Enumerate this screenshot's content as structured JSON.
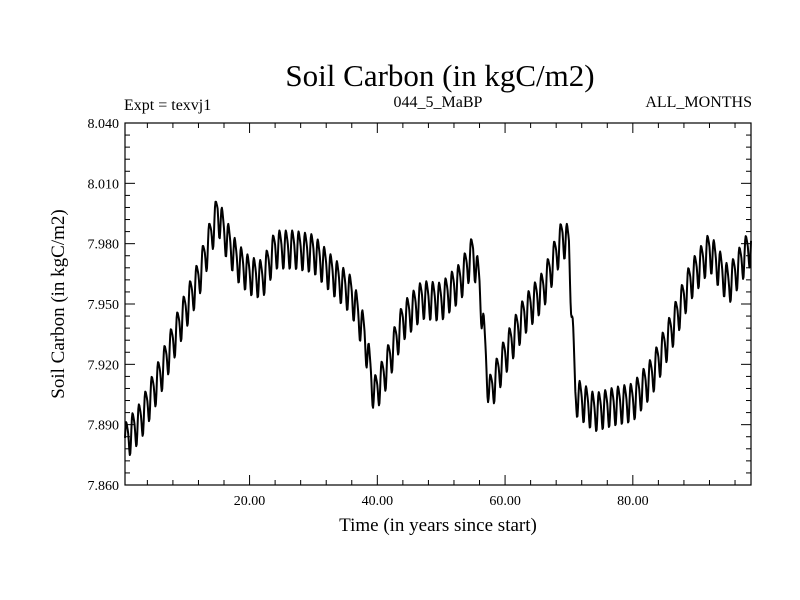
{
  "chart_data": {
    "type": "line",
    "title": "Soil Carbon (in kgC/m2)",
    "subtitle_left": "Expt = texvj1",
    "subtitle_center": "044_5_MaBP",
    "subtitle_right": "ALL_MONTHS",
    "xlabel": "Time (in years since start)",
    "ylabel": "Soil Carbon (in kgC/m2)",
    "xlim": [
      0.5,
      98.5
    ],
    "ylim": [
      7.86,
      8.04
    ],
    "x_ticks": [
      20,
      40,
      60,
      80
    ],
    "x_tick_labels": [
      "20.00",
      "40.00",
      "60.00",
      "80.00"
    ],
    "y_ticks": [
      7.86,
      7.89,
      7.92,
      7.95,
      7.98,
      8.01,
      8.04
    ],
    "y_tick_labels": [
      "7.860",
      "7.890",
      "7.920",
      "7.950",
      "7.980",
      "8.010",
      "8.040"
    ],
    "series": [
      {
        "name": "Soil Carbon",
        "description": "monthly values; seasonal amplitude approx 0.018 kgC/m2 around this annual-mean trend",
        "seasonal_amplitude": 0.018,
        "trend_x": [
          0.5,
          3,
          6,
          9,
          12,
          15,
          16,
          18,
          20,
          22,
          24,
          27,
          30,
          33,
          36,
          38,
          39.5,
          41,
          44,
          47,
          50,
          53,
          55,
          56,
          57.5,
          60,
          63,
          66,
          69,
          70,
          71,
          74,
          77,
          80,
          83,
          86,
          89,
          92,
          95,
          98.5
        ],
        "trend_y": [
          7.882,
          7.893,
          7.915,
          7.94,
          7.963,
          7.996,
          7.986,
          7.972,
          7.965,
          7.963,
          7.978,
          7.978,
          7.976,
          7.965,
          7.955,
          7.935,
          7.905,
          7.915,
          7.942,
          7.953,
          7.952,
          7.962,
          7.976,
          7.96,
          7.905,
          7.925,
          7.945,
          7.958,
          7.984,
          7.98,
          7.905,
          7.897,
          7.9,
          7.902,
          7.915,
          7.937,
          7.962,
          7.977,
          7.96,
          7.98
        ]
      }
    ]
  }
}
